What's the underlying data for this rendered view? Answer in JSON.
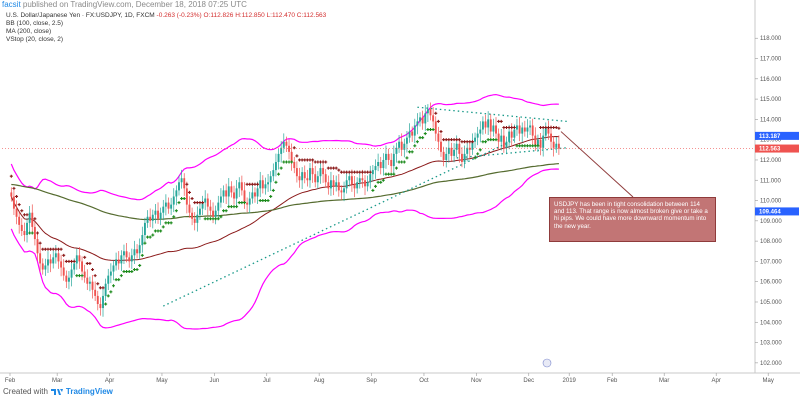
{
  "header": {
    "author": "facsit",
    "published_text": "published on TradingView.com, December 18, 2018 07:25 UTC"
  },
  "legend": {
    "symbol_line": {
      "name": "U.S. Dollar/Japanese Yen",
      "symbol": "FX:USDJPY, 1D, FXCM",
      "change": "-0.263 (-0.23%)",
      "ohlc": "O:112.826 H:112.850 L:112.470 C:112.563"
    },
    "indicators": [
      "BB (100, close, 2.5)",
      "MA (200, close)",
      "VStop (20, close, 2)"
    ]
  },
  "annotation": "USDJPY has been in tight consolidation between 114 and 113. That range is now almost broken give or take a hi pips. We could have more downward momentum into the new year.",
  "footer": {
    "prefix": "Created with",
    "brand": "TradingView"
  },
  "colors": {
    "candle_up": "#26a69a",
    "candle_down": "#ef5350",
    "bb_band": "#ff00ff",
    "bb_basis": "#8b1a1a",
    "ma": "#556b2f",
    "vstop_up": "#1b8a1b",
    "vstop_down": "#8b1a1a",
    "trendline": "#1a9a8a",
    "price_label": "#ef5350",
    "callout_bg": "#c27575"
  },
  "chart_data": {
    "type": "candlestick",
    "title": "U.S. Dollar/Japanese Yen, 1D, FXCM",
    "xlabel": "",
    "ylabel": "",
    "x_ticks": [
      "Feb",
      "Mar",
      "Apr",
      "May",
      "Jun",
      "Jul",
      "Aug",
      "Sep",
      "Oct",
      "Nov",
      "Dec",
      "2019",
      "Feb",
      "Mar",
      "Apr",
      "May"
    ],
    "ylim": [
      101.5,
      118.8
    ],
    "y_ticks": [
      "118.000",
      "117.000",
      "116.000",
      "115.000",
      "114.000",
      "113.000",
      "112.000",
      "111.000",
      "110.000",
      "109.000",
      "108.000",
      "107.000",
      "106.000",
      "105.000",
      "104.000",
      "103.000",
      "102.000"
    ],
    "price_labels": [
      {
        "label": "113.187",
        "value": 113.187,
        "color": "#2962ff"
      },
      {
        "label": "112.563",
        "value": 112.563,
        "color": "#ef5350"
      },
      {
        "label": "109.464",
        "value": 109.464,
        "color": "#2962ff"
      }
    ],
    "close_series": [
      {
        "month": "Feb",
        "values": [
          110.2,
          109.6,
          109.2,
          108.8,
          108.5,
          108.3,
          108.9,
          109.4,
          108.7,
          108.1,
          107.4,
          106.9,
          106.6,
          106.8,
          107.1,
          106.9,
          107.2,
          107.4
        ]
      },
      {
        "month": "Mar",
        "values": [
          107.0,
          106.7,
          106.3,
          106.0,
          106.2,
          106.6,
          106.9,
          107.3,
          107.0,
          106.5,
          106.2,
          105.9,
          106.0,
          105.6,
          105.3,
          104.9,
          104.7,
          105.3,
          105.9,
          106.3
        ]
      },
      {
        "month": "Apr",
        "values": [
          106.5,
          106.8,
          107.1,
          106.9,
          107.3,
          107.5,
          107.2,
          107.0,
          107.3,
          107.6,
          107.4,
          107.8,
          108.3,
          108.9,
          109.2,
          109.0,
          109.3,
          109.5,
          109.1,
          109.4
        ]
      },
      {
        "month": "May",
        "values": [
          109.7,
          109.9,
          109.6,
          109.8,
          110.2,
          110.5,
          110.9,
          111.1,
          110.6,
          109.8,
          109.4,
          109.1,
          108.9,
          109.3,
          109.6,
          109.9,
          110.1,
          109.7,
          109.5,
          109.2
        ]
      },
      {
        "month": "Jun",
        "values": [
          109.5,
          109.9,
          110.2,
          110.5,
          110.2,
          110.7,
          110.4,
          110.1,
          110.6,
          110.9,
          110.5,
          109.9,
          109.8,
          110.1,
          110.4,
          110.2,
          110.6,
          111.0,
          110.6,
          110.8
        ]
      },
      {
        "month": "Jul",
        "values": [
          110.9,
          111.2,
          111.5,
          111.9,
          112.3,
          112.6,
          112.9,
          112.7,
          112.4,
          111.9,
          111.6,
          111.2,
          111.0,
          111.4,
          111.1,
          111.0,
          111.6,
          111.3,
          110.9,
          111.2
        ]
      },
      {
        "month": "Aug",
        "values": [
          111.6,
          111.3,
          110.9,
          110.6,
          111.0,
          110.7,
          110.9,
          110.5,
          110.4,
          110.6,
          111.0,
          111.2,
          110.8,
          110.6,
          110.9,
          111.1,
          111.0,
          110.7,
          110.9,
          111.3
        ]
      },
      {
        "month": "Sep",
        "values": [
          111.5,
          111.7,
          111.9,
          111.6,
          112.0,
          112.3,
          112.0,
          111.7,
          112.3,
          112.6,
          112.9,
          112.5,
          112.8,
          113.1,
          113.4,
          113.2,
          113.7,
          113.9,
          114.1,
          113.8
        ]
      },
      {
        "month": "Oct",
        "values": [
          114.3,
          114.5,
          114.2,
          113.9,
          113.3,
          112.9,
          112.4,
          112.0,
          112.3,
          112.6,
          112.2,
          112.5,
          112.8,
          112.3,
          111.9,
          112.3,
          112.6,
          112.5,
          112.9,
          113.1
        ]
      },
      {
        "month": "Nov",
        "values": [
          113.3,
          113.5,
          113.9,
          113.6,
          114.0,
          113.4,
          113.7,
          113.3,
          112.9,
          113.2,
          112.6,
          112.9,
          113.4,
          113.1,
          113.5,
          113.7,
          113.3,
          113.6,
          113.4,
          113.6
        ]
      },
      {
        "month": "Dec",
        "values": [
          113.7,
          113.2,
          112.7,
          113.0,
          112.6,
          113.2,
          113.6,
          113.3,
          112.9,
          112.6,
          112.8,
          112.563
        ]
      }
    ]
  }
}
